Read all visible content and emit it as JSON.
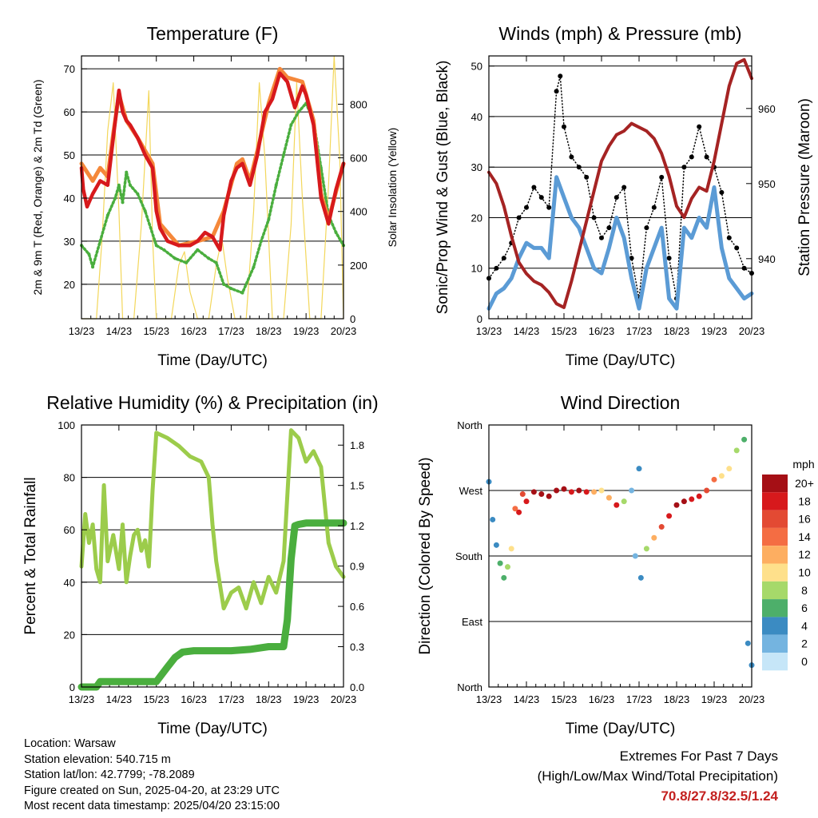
{
  "chart_data": [
    {
      "type": "line",
      "title": "Temperature (F)",
      "xlabel": "Time (Day/UTC)",
      "ylabel": "2m & 9m T (Red, Orange) & 2m Td (Green)",
      "ylabel_right": "Solar Insolation (Yellow)",
      "x_ticks": [
        "13/23",
        "14/23",
        "15/23",
        "16/23",
        "17/23",
        "18/23",
        "19/23",
        "20/23"
      ],
      "ylim": [
        12,
        73
      ],
      "y_ticks": [
        20,
        30,
        40,
        50,
        60,
        70
      ],
      "ylim_right": [
        0,
        980
      ],
      "y_ticks_right": [
        0,
        200,
        400,
        600,
        800
      ],
      "grid_y": [
        20,
        30,
        40,
        50,
        60,
        70
      ],
      "colors": {
        "t2m": "#d7191c",
        "t9m": "#f5883a",
        "td": "#4aae3e",
        "solar": "#f3d75b"
      },
      "series": [
        {
          "id": "t2m",
          "x": [
            0,
            0.05,
            0.15,
            0.3,
            0.5,
            0.7,
            0.85,
            1.0,
            1.1,
            1.2,
            1.3,
            1.5,
            1.7,
            1.9,
            2.0,
            2.1,
            2.3,
            2.6,
            2.9,
            3.1,
            3.3,
            3.5,
            3.7,
            3.8,
            4.0,
            4.15,
            4.3,
            4.5,
            4.7,
            4.9,
            5.1,
            5.3,
            5.5,
            5.7,
            5.9,
            6.0,
            6.2,
            6.4,
            6.6,
            6.8,
            7.0
          ],
          "values": [
            47,
            42,
            38,
            41,
            44,
            43,
            54,
            65,
            60,
            58,
            57,
            54,
            50,
            47,
            37,
            33,
            30,
            29,
            29,
            30,
            32,
            31,
            28,
            36,
            44,
            47,
            48,
            43,
            50,
            60,
            63,
            69,
            67,
            61,
            66,
            64,
            57,
            40,
            34,
            42,
            48
          ]
        },
        {
          "id": "t9m",
          "x": [
            0,
            0.3,
            0.5,
            0.7,
            0.85,
            1.0,
            1.2,
            1.5,
            1.9,
            2.1,
            2.6,
            3.1,
            3.5,
            3.8,
            4.15,
            4.3,
            4.5,
            4.7,
            5.0,
            5.3,
            5.5,
            5.9,
            6.2,
            6.4,
            6.6,
            7.0
          ],
          "values": [
            48,
            44,
            47,
            45,
            55,
            64,
            58,
            54,
            48,
            34,
            29,
            30,
            31,
            37,
            48,
            49,
            44,
            51,
            62,
            70,
            68,
            67,
            58,
            41,
            35,
            48
          ]
        },
        {
          "id": "td",
          "x": [
            0,
            0.2,
            0.3,
            0.5,
            0.7,
            0.9,
            1.0,
            1.1,
            1.2,
            1.3,
            1.5,
            1.7,
            2.0,
            2.2,
            2.5,
            2.8,
            3.1,
            3.4,
            3.6,
            3.8,
            4.0,
            4.3,
            4.6,
            4.8,
            5.0,
            5.2,
            5.4,
            5.6,
            5.8,
            6.0,
            6.2,
            6.4,
            6.6,
            6.8,
            7.0
          ],
          "values": [
            29,
            27,
            24,
            30,
            36,
            40,
            43,
            39,
            46,
            43,
            41,
            37,
            29,
            28,
            26,
            25,
            28,
            26,
            25,
            20,
            19,
            18,
            24,
            30,
            35,
            43,
            50,
            57,
            60,
            62,
            58,
            47,
            36,
            32,
            29
          ]
        },
        {
          "id": "solar",
          "x": [
            0,
            0.4,
            0.55,
            0.7,
            0.85,
            1.0,
            1.1,
            1.4,
            1.6,
            1.8,
            1.9,
            2.0,
            2.1,
            2.4,
            2.6,
            2.75,
            2.9,
            3.1,
            3.4,
            3.6,
            3.75,
            3.9,
            4.1,
            4.4,
            4.6,
            4.75,
            4.9,
            5.1,
            5.4,
            5.6,
            5.75,
            5.9,
            6.1,
            6.4,
            6.6,
            6.75,
            6.9,
            7.0
          ],
          "values": [
            0,
            0,
            300,
            700,
            880,
            400,
            0,
            0,
            350,
            850,
            300,
            0,
            0,
            0,
            200,
            250,
            100,
            0,
            0,
            200,
            300,
            150,
            0,
            0,
            400,
            880,
            600,
            0,
            0,
            350,
            880,
            450,
            0,
            0,
            500,
            980,
            600,
            0
          ]
        }
      ]
    },
    {
      "type": "line",
      "title": "Winds (mph) & Pressure (mb)",
      "xlabel": "Time (Day/UTC)",
      "ylabel": "Sonic/Prop Wind & Gust (Blue, Black)",
      "ylabel_right": "Station Pressure (Maroon)",
      "x_ticks": [
        "13/23",
        "14/23",
        "15/23",
        "16/23",
        "17/23",
        "18/23",
        "19/23",
        "20/23"
      ],
      "ylim": [
        0,
        52
      ],
      "y_ticks": [
        0,
        10,
        20,
        30,
        40,
        50
      ],
      "ylim_right": [
        932,
        967
      ],
      "y_ticks_right": [
        940,
        950,
        960
      ],
      "grid_y": [
        10,
        20,
        30,
        40,
        50
      ],
      "colors": {
        "wind": "#5b9bd5",
        "gust": "#000000",
        "pressure": "#a52323"
      },
      "series": [
        {
          "id": "wind",
          "x": [
            0,
            0.2,
            0.4,
            0.6,
            0.8,
            1.0,
            1.2,
            1.4,
            1.6,
            1.8,
            2.0,
            2.2,
            2.4,
            2.6,
            2.8,
            3.0,
            3.2,
            3.4,
            3.6,
            3.8,
            4.0,
            4.2,
            4.4,
            4.6,
            4.8,
            5.0,
            5.2,
            5.4,
            5.6,
            5.8,
            6.0,
            6.2,
            6.4,
            6.6,
            6.8,
            7.0
          ],
          "values": [
            2,
            5,
            6,
            8,
            12,
            15,
            14,
            14,
            12,
            28,
            24,
            20,
            18,
            14,
            10,
            9,
            14,
            20,
            16,
            8,
            2,
            10,
            14,
            18,
            4,
            2,
            18,
            16,
            20,
            18,
            26,
            14,
            8,
            6,
            4,
            5
          ]
        },
        {
          "id": "gust",
          "x": [
            0,
            0.2,
            0.4,
            0.6,
            0.8,
            1.0,
            1.2,
            1.4,
            1.6,
            1.8,
            1.9,
            2.0,
            2.2,
            2.4,
            2.6,
            2.8,
            3.0,
            3.2,
            3.4,
            3.6,
            3.8,
            4.0,
            4.2,
            4.4,
            4.6,
            4.8,
            5.0,
            5.2,
            5.4,
            5.6,
            5.8,
            6.0,
            6.2,
            6.4,
            6.6,
            6.8,
            7.0
          ],
          "values": [
            8,
            10,
            12,
            15,
            20,
            22,
            26,
            24,
            22,
            45,
            48,
            38,
            32,
            30,
            28,
            20,
            16,
            18,
            24,
            26,
            12,
            4,
            18,
            22,
            28,
            12,
            4,
            30,
            32,
            38,
            32,
            30,
            25,
            16,
            14,
            10,
            9
          ]
        },
        {
          "id": "pressure",
          "x": [
            0,
            0.2,
            0.4,
            0.6,
            0.8,
            1.0,
            1.2,
            1.4,
            1.6,
            1.8,
            2.0,
            2.2,
            2.4,
            2.6,
            2.8,
            3.0,
            3.2,
            3.4,
            3.6,
            3.8,
            4.0,
            4.2,
            4.4,
            4.6,
            4.8,
            5.0,
            5.2,
            5.4,
            5.6,
            5.8,
            6.0,
            6.2,
            6.4,
            6.6,
            6.8,
            7.0
          ],
          "values": [
            951.5,
            950,
            947,
            943,
            939.5,
            938,
            937,
            936.5,
            935.5,
            934,
            933.5,
            937,
            941,
            945,
            949,
            953,
            955,
            956.5,
            957,
            958,
            957.5,
            957,
            956,
            954,
            951,
            947,
            945.5,
            948,
            949.5,
            949,
            953,
            958,
            963,
            966,
            966.5,
            964
          ]
        }
      ]
    },
    {
      "type": "line",
      "title": "Relative Humidity (%) & Precipitation (in)",
      "xlabel": "Time (Day/UTC)",
      "ylabel": "Percent & Total Rainfall",
      "x_ticks": [
        "13/23",
        "14/23",
        "15/23",
        "16/23",
        "17/23",
        "18/23",
        "19/23",
        "20/23"
      ],
      "ylim": [
        0,
        100
      ],
      "y_ticks": [
        0,
        20,
        40,
        60,
        80,
        100
      ],
      "ylim_right": [
        0,
        1.95
      ],
      "y_ticks_right": [
        "0.0",
        "0.3",
        "0.6",
        "0.9",
        "1.2",
        "1.5",
        "1.8"
      ],
      "grid_y": [
        20,
        40,
        60,
        80
      ],
      "colors": {
        "rh": "#9ccc4b",
        "precip": "#4aae3e"
      },
      "series": [
        {
          "id": "rh",
          "x": [
            0,
            0.1,
            0.2,
            0.3,
            0.4,
            0.5,
            0.6,
            0.7,
            0.85,
            1.0,
            1.1,
            1.2,
            1.3,
            1.4,
            1.5,
            1.6,
            1.7,
            1.8,
            1.9,
            2.0,
            2.3,
            2.6,
            2.9,
            3.2,
            3.4,
            3.5,
            3.6,
            3.8,
            4.0,
            4.2,
            4.4,
            4.6,
            4.8,
            5.0,
            5.2,
            5.4,
            5.6,
            5.8,
            6.0,
            6.2,
            6.4,
            6.6,
            6.8,
            7.0
          ],
          "values": [
            46,
            66,
            55,
            62,
            45,
            40,
            77,
            48,
            58,
            45,
            62,
            40,
            50,
            58,
            60,
            52,
            56,
            46,
            75,
            97,
            95,
            92,
            88,
            86,
            80,
            62,
            48,
            30,
            36,
            38,
            30,
            40,
            32,
            42,
            36,
            48,
            98,
            95,
            86,
            90,
            84,
            55,
            46,
            42
          ]
        },
        {
          "id": "precip",
          "x": [
            0,
            0.4,
            0.5,
            1.0,
            1.5,
            2.0,
            2.3,
            2.5,
            2.7,
            3.0,
            3.5,
            4.0,
            4.5,
            5.0,
            5.4,
            5.5,
            5.6,
            5.7,
            5.8,
            6.0,
            6.5,
            7.0
          ],
          "values": [
            0,
            0,
            0.04,
            0.04,
            0.04,
            0.04,
            0.15,
            0.22,
            0.26,
            0.27,
            0.27,
            0.27,
            0.28,
            0.3,
            0.3,
            0.5,
            0.95,
            1.2,
            1.21,
            1.22,
            1.22,
            1.22
          ]
        }
      ]
    },
    {
      "type": "scatter",
      "title": "Wind Direction",
      "xlabel": "Time (Day/UTC)",
      "ylabel": "Direction (Colored By Speed)",
      "x_ticks": [
        "13/23",
        "14/23",
        "15/23",
        "16/23",
        "17/23",
        "18/23",
        "19/23",
        "20/23"
      ],
      "ylim": [
        0,
        360
      ],
      "y_ticks": [
        "North",
        "East",
        "South",
        "West",
        "North"
      ],
      "grid_y": [
        90,
        180,
        270
      ],
      "legend_title": "mph",
      "legend_labels": [
        "20+",
        "18",
        "16",
        "14",
        "12",
        "10",
        "8",
        "6",
        "4",
        "2",
        "0"
      ],
      "legend_colors": [
        "#a50f15",
        "#d7191c",
        "#e34a33",
        "#f46d43",
        "#fdae61",
        "#fee08b",
        "#a6d96a",
        "#4daf6a",
        "#3b8bc2",
        "#74b4e0",
        "#c6e6f8"
      ],
      "series": [
        {
          "name": "direction",
          "x": [
            0,
            0.1,
            0.2,
            0.3,
            0.4,
            0.5,
            0.6,
            0.7,
            0.8,
            0.9,
            1.0,
            1.2,
            1.4,
            1.6,
            1.8,
            2.0,
            2.2,
            2.4,
            2.6,
            2.8,
            3.0,
            3.2,
            3.4,
            3.6,
            3.8,
            3.9,
            4.0,
            4.05,
            4.2,
            4.4,
            4.6,
            4.8,
            5.0,
            5.2,
            5.4,
            5.6,
            5.8,
            6.0,
            6.2,
            6.4,
            6.6,
            6.8,
            6.9,
            7.0
          ],
          "values": [
            282,
            230,
            195,
            170,
            150,
            165,
            190,
            245,
            240,
            265,
            255,
            268,
            265,
            262,
            270,
            272,
            268,
            270,
            268,
            268,
            270,
            260,
            250,
            255,
            270,
            180,
            300,
            150,
            190,
            205,
            220,
            235,
            250,
            255,
            258,
            262,
            270,
            285,
            290,
            300,
            325,
            340,
            60,
            30
          ],
          "speeds": [
            3,
            3,
            4,
            5,
            6,
            8,
            10,
            14,
            17,
            16,
            18,
            19,
            20,
            21,
            20,
            19,
            18,
            19,
            18,
            12,
            10,
            12,
            18,
            8,
            2,
            1,
            3,
            4,
            8,
            12,
            16,
            18,
            19,
            20,
            18,
            17,
            16,
            13,
            10,
            9,
            8,
            6,
            3,
            3
          ]
        }
      ]
    }
  ],
  "info": {
    "location": "Location: Warsaw",
    "elevation": "Station elevation: 540.715 m",
    "latlon": "Station lat/lon: 42.7799; -78.2089",
    "created": "Figure created on Sun, 2025-04-20, at 23:29 UTC",
    "recent": "Most recent data timestamp: 2025/04/20 23:15:00"
  },
  "extremes": {
    "line1": "Extremes For Past 7 Days",
    "line2": "(High/Low/Max Wind/Total Precipitation)",
    "values": "70.8/27.8/32.5/1.24"
  }
}
